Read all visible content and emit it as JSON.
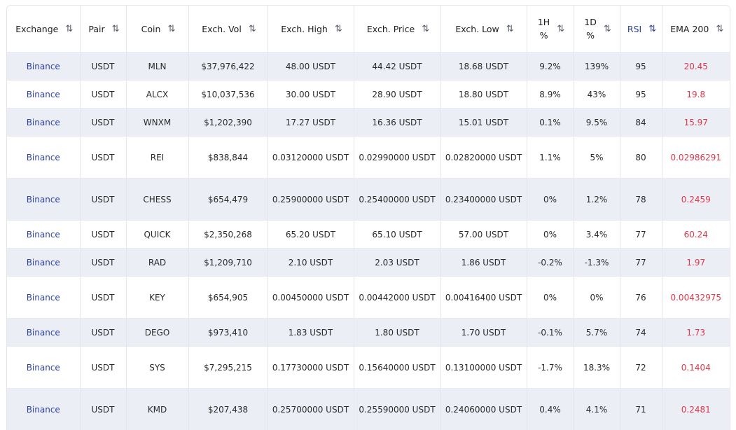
{
  "headers": [
    {
      "label": "Exchange",
      "sort": "⇅",
      "active": false
    },
    {
      "label": "Pair",
      "sort": "⇅",
      "active": false
    },
    {
      "label": "Coin",
      "sort": "⇅",
      "active": false
    },
    {
      "label": "Exch. Vol",
      "sort": "⇅",
      "active": false
    },
    {
      "label": "Exch. High",
      "sort": "⇅",
      "active": false
    },
    {
      "label": "Exch. Price",
      "sort": "⇅",
      "active": false
    },
    {
      "label": "Exch. Low",
      "sort": "⇅",
      "active": false
    },
    {
      "label": "1H\n%",
      "sort": "⇅",
      "active": false
    },
    {
      "label": "1D\n%",
      "sort": "⇅",
      "active": false
    },
    {
      "label": "RSI",
      "sort": "⇅",
      "active": true
    },
    {
      "label": "EMA 200",
      "sort": "⇅",
      "active": false
    }
  ],
  "rows": [
    {
      "exchange": "Binance",
      "pair": "USDT",
      "coin": "MLN",
      "vol": "$37,976,422",
      "high": "48.00 USDT",
      "price": "44.42 USDT",
      "low": "18.68 USDT",
      "h1": "9.2%",
      "d1": "139%",
      "rsi": "95",
      "ema": "20.45"
    },
    {
      "exchange": "Binance",
      "pair": "USDT",
      "coin": "ALCX",
      "vol": "$10,037,536",
      "high": "30.00 USDT",
      "price": "28.90 USDT",
      "low": "18.80 USDT",
      "h1": "8.9%",
      "d1": "43%",
      "rsi": "95",
      "ema": "19.8"
    },
    {
      "exchange": "Binance",
      "pair": "USDT",
      "coin": "WNXM",
      "vol": "$1,202,390",
      "high": "17.27 USDT",
      "price": "16.36 USDT",
      "low": "15.01 USDT",
      "h1": "0.1%",
      "d1": "9.5%",
      "rsi": "84",
      "ema": "15.97"
    },
    {
      "exchange": "Binance",
      "pair": "USDT",
      "coin": "REI",
      "vol": "$838,844",
      "high": "0.03120000 USDT",
      "price": "0.02990000 USDT",
      "low": "0.02820000 USDT",
      "h1": "1.1%",
      "d1": "5%",
      "rsi": "80",
      "ema": "0.02986291"
    },
    {
      "exchange": "Binance",
      "pair": "USDT",
      "coin": "CHESS",
      "vol": "$654,479",
      "high": "0.25900000 USDT",
      "price": "0.25400000 USDT",
      "low": "0.23400000 USDT",
      "h1": "0%",
      "d1": "1.2%",
      "rsi": "78",
      "ema": "0.2459"
    },
    {
      "exchange": "Binance",
      "pair": "USDT",
      "coin": "QUICK",
      "vol": "$2,350,268",
      "high": "65.20 USDT",
      "price": "65.10 USDT",
      "low": "57.00 USDT",
      "h1": "0%",
      "d1": "3.4%",
      "rsi": "77",
      "ema": "60.24"
    },
    {
      "exchange": "Binance",
      "pair": "USDT",
      "coin": "RAD",
      "vol": "$1,209,710",
      "high": "2.10 USDT",
      "price": "2.03 USDT",
      "low": "1.86 USDT",
      "h1": "-0.2%",
      "d1": "-1.3%",
      "rsi": "77",
      "ema": "1.97"
    },
    {
      "exchange": "Binance",
      "pair": "USDT",
      "coin": "KEY",
      "vol": "$654,905",
      "high": "0.00450000 USDT",
      "price": "0.00442000 USDT",
      "low": "0.00416400 USDT",
      "h1": "0%",
      "d1": "0%",
      "rsi": "76",
      "ema": "0.00432975"
    },
    {
      "exchange": "Binance",
      "pair": "USDT",
      "coin": "DEGO",
      "vol": "$973,410",
      "high": "1.83 USDT",
      "price": "1.80 USDT",
      "low": "1.70 USDT",
      "h1": "-0.1%",
      "d1": "5.7%",
      "rsi": "74",
      "ema": "1.73"
    },
    {
      "exchange": "Binance",
      "pair": "USDT",
      "coin": "SYS",
      "vol": "$7,295,215",
      "high": "0.17730000 USDT",
      "price": "0.15640000 USDT",
      "low": "0.13100000 USDT",
      "h1": "-1.7%",
      "d1": "18.3%",
      "rsi": "72",
      "ema": "0.1404"
    },
    {
      "exchange": "Binance",
      "pair": "USDT",
      "coin": "KMD",
      "vol": "$207,438",
      "high": "0.25700000 USDT",
      "price": "0.25590000 USDT",
      "low": "0.24060000 USDT",
      "h1": "0.4%",
      "d1": "4.1%",
      "rsi": "71",
      "ema": "0.2481"
    }
  ],
  "colors": {
    "exchange_link": "#2f44a0",
    "ema_value": "#e0374a",
    "row_shade": "#eceef5",
    "active_header": "#2d3f9a"
  }
}
